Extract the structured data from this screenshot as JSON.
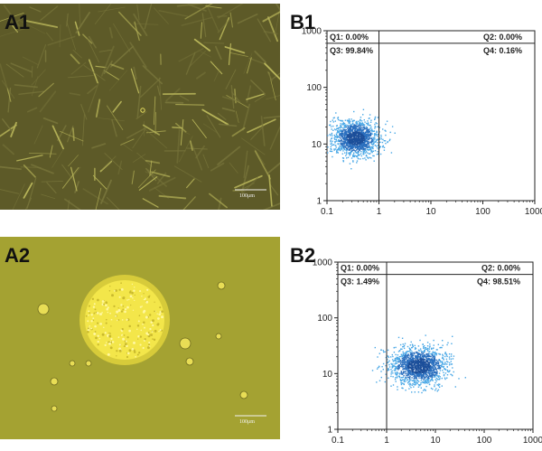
{
  "figure": {
    "panels": [
      {
        "label": "A1",
        "kind": "micrograph",
        "scale_bar_label": "100μm"
      },
      {
        "label": "A2",
        "kind": "micrograph",
        "scale_bar_label": "100μm"
      },
      {
        "label": "B1",
        "kind": "flow-cytometry"
      },
      {
        "label": "B2",
        "kind": "flow-cytometry"
      }
    ],
    "colors": {
      "a1_background": "#5d5a28",
      "a2_background": "#a4a232",
      "spheroid": "#f3e64a",
      "dot_plot": "#2a6fbe",
      "axis": "#222222"
    }
  },
  "chart_data": [
    {
      "panel": "B1",
      "type": "scatter",
      "xscale": "log",
      "yscale": "log",
      "xlim": [
        0.1,
        1000
      ],
      "ylim": [
        1,
        1000
      ],
      "xticks": [
        "0.1",
        "1",
        "10",
        "100",
        "1000"
      ],
      "yticks": [
        "1",
        "10",
        "100",
        "1000"
      ],
      "gate": {
        "x": 1,
        "y": 600
      },
      "quadrants": [
        {
          "name": "Q1",
          "label": "Q1: 0.00%",
          "value": 0.0
        },
        {
          "name": "Q2",
          "label": "Q2: 0.00%",
          "value": 0.0
        },
        {
          "name": "Q3",
          "label": "Q3: 99.84%",
          "value": 99.84
        },
        {
          "name": "Q4",
          "label": "Q4: 0.16%",
          "value": 0.16
        }
      ],
      "population": {
        "center_x": 0.35,
        "center_y": 13,
        "spread_x": 0.22,
        "spread_y": 0.16,
        "n": 1400
      }
    },
    {
      "panel": "B2",
      "type": "scatter",
      "xscale": "log",
      "yscale": "log",
      "xlim": [
        0.1,
        1000
      ],
      "ylim": [
        1,
        1000
      ],
      "xticks": [
        "0.1",
        "1",
        "10",
        "100",
        "1000"
      ],
      "yticks": [
        "1",
        "10",
        "100",
        "1000"
      ],
      "gate": {
        "x": 1,
        "y": 600
      },
      "quadrants": [
        {
          "name": "Q1",
          "label": "Q1: 0.00%",
          "value": 0.0
        },
        {
          "name": "Q2",
          "label": "Q2: 0.00%",
          "value": 0.0
        },
        {
          "name": "Q3",
          "label": "Q3: 1.49%",
          "value": 1.49
        },
        {
          "name": "Q4",
          "label": "Q4: 98.51%",
          "value": 98.51
        }
      ],
      "population": {
        "center_x": 4.5,
        "center_y": 14,
        "spread_x": 0.3,
        "spread_y": 0.17,
        "n": 1500
      }
    }
  ]
}
